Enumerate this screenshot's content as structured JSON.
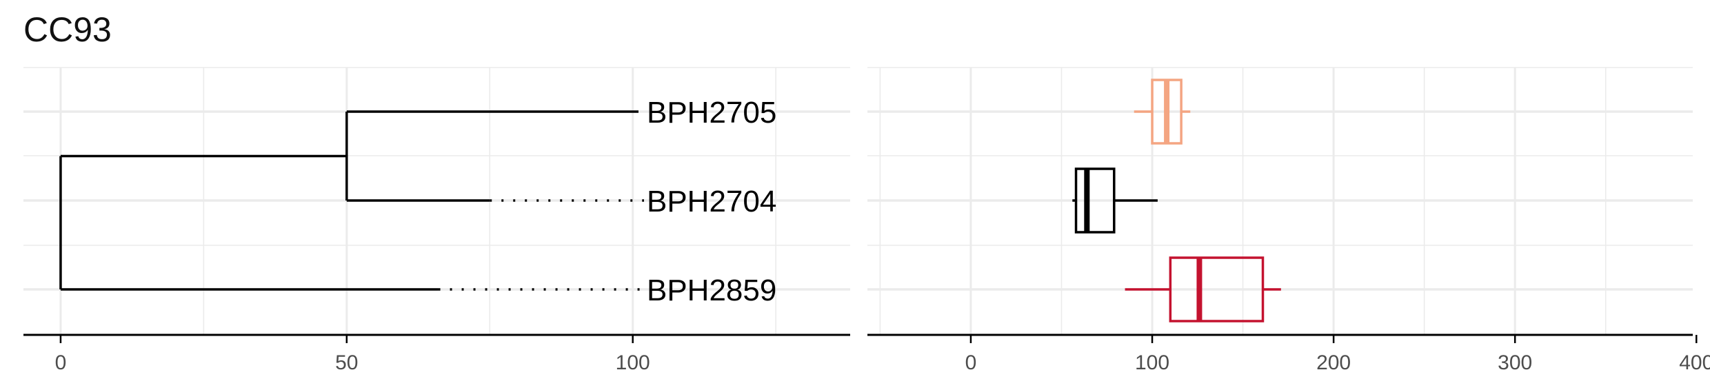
{
  "title": "CC93",
  "chart_data": [
    {
      "type": "dendrogram",
      "x_ticks": [
        0,
        50,
        100
      ],
      "xlim": [
        -6.5,
        138
      ],
      "tips": [
        "BPH2705",
        "BPH2704",
        "BPH2859"
      ],
      "leaf_x": [
        101,
        75,
        66
      ],
      "branches": [
        {
          "from": 0,
          "to": 50,
          "children": [
            "BPH2705",
            "BPH2704"
          ]
        },
        {
          "from": 50,
          "to": 101,
          "tip": "BPH2705"
        },
        {
          "from": 50,
          "to": 75,
          "tip": "BPH2704"
        },
        {
          "from": 0,
          "to": 66,
          "tip": "BPH2859"
        }
      ],
      "grid": true
    },
    {
      "type": "boxplot",
      "x_ticks": [
        0,
        100,
        200,
        300,
        400
      ],
      "xlim": [
        -57,
        398
      ],
      "categories": [
        "BPH2705",
        "BPH2704",
        "BPH2859"
      ],
      "boxes": [
        {
          "category": "BPH2705",
          "min": 90,
          "q1": 100,
          "median": 108,
          "q3": 116,
          "max": 121,
          "color": "#f4a582"
        },
        {
          "category": "BPH2704",
          "min": 56,
          "q1": 58,
          "median": 64,
          "q3": 79,
          "max": 103,
          "color": "#000000"
        },
        {
          "category": "BPH2859",
          "min": 85,
          "q1": 110,
          "median": 126,
          "q3": 161,
          "max": 171,
          "color": "#c4122f"
        }
      ],
      "grid": true
    }
  ]
}
